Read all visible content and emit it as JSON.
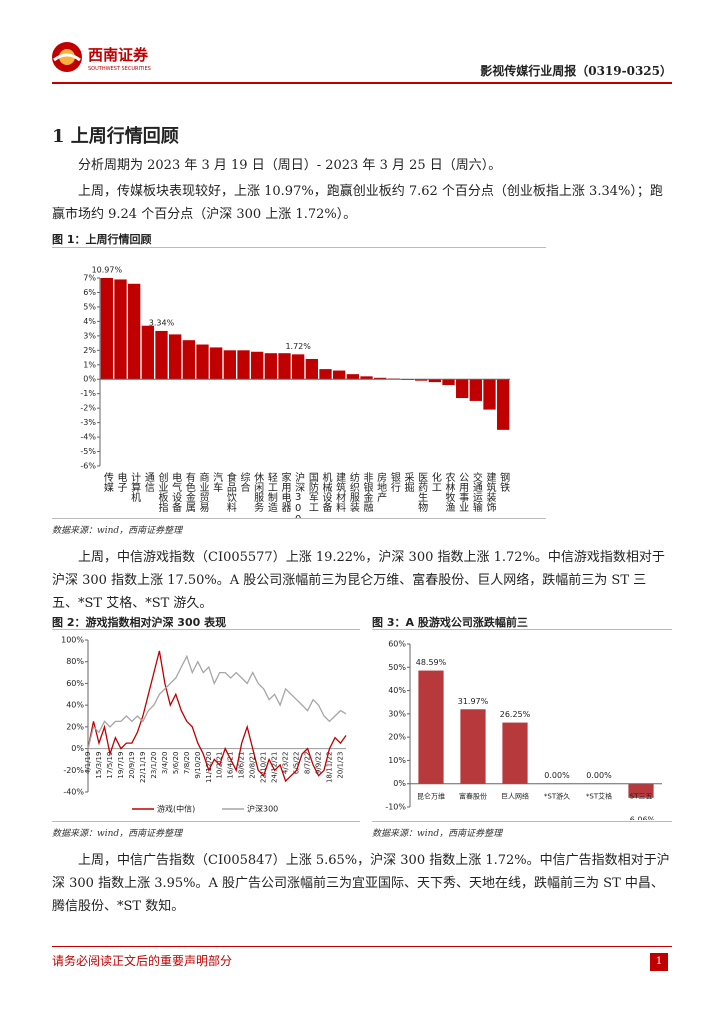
{
  "header": {
    "brand": "西南证券",
    "brand_en": "SOUTHWEST SECURITIES",
    "report_title": "影视传媒行业周报（0319-0325）"
  },
  "heading": "1 上周行情回顾",
  "paragraphs": [
    "分析周期为 2023 年 3 月 19 日（周日）- 2023 年 3 月 25 日（周六）。",
    "上周，传媒板块表现较好，上涨 10.97%，跑赢创业板约 7.62 个百分点（创业板指上涨 3.34%）；跑赢市场约 9.24 个百分点（沪深 300 上涨 1.72%）。",
    "上周，中信游戏指数（CI005577）上涨 19.22%，沪深 300 指数上涨 1.72%。中信游戏指数相对于沪深 300 指数上涨 17.50%。A 股公司涨幅前三为昆仑万维、富春股份、巨人网络，跌幅前三为 ST 三五、*ST 艾格、*ST 游久。",
    "上周，中信广告指数（CI005847）上涨 5.65%，沪深 300 指数上涨 1.72%。中信广告指数相对于沪深 300 指数上涨 3.95%。A 股广告公司涨幅前三为宜亚国际、天下秀、天地在线，跌幅前三为 ST 中昌、腾信股份、*ST 数知。"
  ],
  "chart_data": [
    {
      "type": "bar",
      "title": "图 1：上周行情回顾",
      "source": "数据来源：wind，西南证券整理",
      "color": "#c00000",
      "categories": [
        "传媒",
        "电子",
        "计算机",
        "通信",
        "创业板指",
        "电气设备",
        "有色金属",
        "商业贸易",
        "汽车",
        "食品饮料",
        "综合",
        "休闲服务",
        "轻工制造",
        "家用电器",
        "沪深300",
        "国防军工",
        "机械设备",
        "建筑材料",
        "纺织服装",
        "非银金融",
        "房地产",
        "银行",
        "采掘",
        "医药生物",
        "化工",
        "农林牧渔",
        "公用事业",
        "交通运输",
        "建筑装饰",
        "钢铁"
      ],
      "values": [
        10.97,
        6.9,
        6.6,
        3.7,
        3.34,
        3.1,
        2.7,
        2.4,
        2.2,
        2.0,
        2.0,
        1.9,
        1.8,
        1.8,
        1.72,
        1.4,
        0.7,
        0.6,
        0.35,
        0.2,
        0.1,
        0.05,
        -0.05,
        -0.1,
        -0.2,
        -0.4,
        -1.3,
        -1.5,
        -2.1,
        -3.5
      ],
      "value_labels": [
        "10.97%",
        null,
        null,
        null,
        "3.34%",
        null,
        null,
        null,
        null,
        null,
        null,
        null,
        null,
        null,
        "1.72%",
        null,
        null,
        null,
        null,
        null,
        null,
        null,
        null,
        null,
        null,
        null,
        null,
        null,
        null,
        null
      ],
      "ylim": [
        -6,
        7
      ],
      "yticks": [
        {
          "value": -6,
          "label": "-6%"
        },
        {
          "value": -5,
          "label": "-5%"
        },
        {
          "value": -4,
          "label": "-4%"
        },
        {
          "value": -3,
          "label": "-3%"
        },
        {
          "value": -2,
          "label": "-2%"
        },
        {
          "value": -1,
          "label": "-1%"
        },
        {
          "value": 0,
          "label": "0%"
        },
        {
          "value": 1,
          "label": "1%"
        },
        {
          "value": 2,
          "label": "2%"
        },
        {
          "value": 3,
          "label": "3%"
        },
        {
          "value": 4,
          "label": "4%"
        },
        {
          "value": 5,
          "label": "5%"
        },
        {
          "value": 6,
          "label": "6%"
        },
        {
          "value": 7,
          "label": "7%"
        }
      ]
    },
    {
      "type": "line",
      "title": "图 2：游戏指数相对沪深 300 表现",
      "source": "数据来源：wind，西南证券整理",
      "categories": [
        "4/1/19",
        null,
        "15/3/19",
        null,
        "17/5/19",
        null,
        "19/7/19",
        null,
        "20/9/19",
        null,
        "22/11/19",
        null,
        "23/1/20",
        null,
        "3/4/20",
        null,
        "5/6/20",
        null,
        "7/8/20",
        null,
        "9/10/20",
        null,
        "11/12/20",
        null,
        "10/2/21",
        null,
        "16/4/21",
        null,
        "18/6/21",
        null,
        "20/8/21",
        null,
        "22/10/21",
        null,
        "24/12/21",
        null,
        "4/3/22",
        null,
        "6/5/22",
        null,
        "8/7/22",
        null,
        "9/9/22",
        null,
        "18/11/22",
        null,
        "20/1/23",
        null
      ],
      "series": [
        {
          "name": "游戏(中信)",
          "color": "#c00000",
          "values": [
            0,
            25,
            5,
            20,
            -5,
            10,
            0,
            5,
            5,
            15,
            30,
            50,
            70,
            90,
            60,
            40,
            50,
            35,
            25,
            20,
            5,
            -5,
            -20,
            -10,
            -15,
            0,
            -10,
            -20,
            5,
            20,
            0,
            -20,
            -25,
            -10,
            -20,
            -15,
            -30,
            -25,
            -20,
            -5,
            0,
            -15,
            -25,
            -20,
            0,
            10,
            5,
            12
          ]
        },
        {
          "name": "沪深300",
          "color": "#a6a6a6",
          "values": [
            0,
            20,
            15,
            25,
            20,
            25,
            25,
            30,
            25,
            30,
            25,
            35,
            40,
            50,
            55,
            60,
            65,
            75,
            85,
            70,
            80,
            70,
            75,
            60,
            70,
            70,
            65,
            70,
            65,
            60,
            70,
            60,
            55,
            45,
            50,
            40,
            55,
            50,
            45,
            40,
            35,
            45,
            40,
            30,
            25,
            30,
            35,
            32
          ]
        }
      ],
      "ylim": [
        -40,
        100
      ],
      "yticks": [
        {
          "value": -40,
          "label": "-40%"
        },
        {
          "value": -20,
          "label": "-20%"
        },
        {
          "value": 0,
          "label": "0%"
        },
        {
          "value": 20,
          "label": "20%"
        },
        {
          "value": 40,
          "label": "40%"
        },
        {
          "value": 60,
          "label": "60%"
        },
        {
          "value": 80,
          "label": "80%"
        },
        {
          "value": 100,
          "label": "100%"
        }
      ]
    },
    {
      "type": "bar",
      "title": "图 3：A 股游戏公司涨跌幅前三",
      "source": "数据来源：wind，西南证券整理",
      "color": "#b7393c",
      "categories": [
        "昆仑万维",
        "富春股份",
        "巨人网络",
        "*ST游久",
        "*ST艾格",
        "ST三五"
      ],
      "values": [
        48.59,
        31.97,
        26.25,
        0,
        0,
        -6.06
      ],
      "value_labels": [
        "48.59%",
        "31.97%",
        "26.25%",
        "0.00%",
        "0.00%",
        "-6.06%"
      ],
      "ylim": [
        -10,
        60
      ],
      "yticks": [
        {
          "value": -10,
          "label": "-10%"
        },
        {
          "value": 0,
          "label": "0%"
        },
        {
          "value": 10,
          "label": "10%"
        },
        {
          "value": 20,
          "label": "20%"
        },
        {
          "value": 30,
          "label": "30%"
        },
        {
          "value": 40,
          "label": "40%"
        },
        {
          "value": 50,
          "label": "50%"
        },
        {
          "value": 60,
          "label": "60%"
        }
      ]
    }
  ],
  "footer": {
    "disclaimer": "请务必阅读正文后的重要声明部分",
    "page": "1"
  }
}
